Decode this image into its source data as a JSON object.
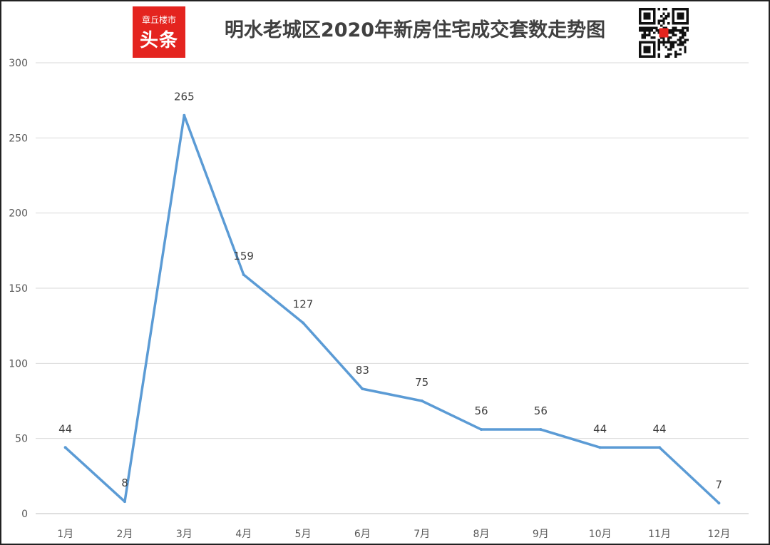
{
  "logo": {
    "line1": "章丘楼市",
    "line2": "头条"
  },
  "qr_icon": "qr-code-icon",
  "colors": {
    "line": "#5b9bd5",
    "grid": "#d9d9d9",
    "logo": "#e4241f"
  },
  "chart_data": {
    "type": "line",
    "title": "明水老城区2020年新房住宅成交套数走势图",
    "xlabel": "",
    "ylabel": "",
    "categories": [
      "1月",
      "2月",
      "3月",
      "4月",
      "5月",
      "6月",
      "7月",
      "8月",
      "9月",
      "10月",
      "11月",
      "12月"
    ],
    "values": [
      44,
      8,
      265,
      159,
      127,
      83,
      75,
      56,
      56,
      44,
      44,
      7
    ],
    "ylim": [
      0,
      300
    ],
    "yticks": [
      0,
      50,
      100,
      150,
      200,
      250,
      300
    ],
    "grid": true,
    "legend": "none",
    "data_labels": true
  }
}
